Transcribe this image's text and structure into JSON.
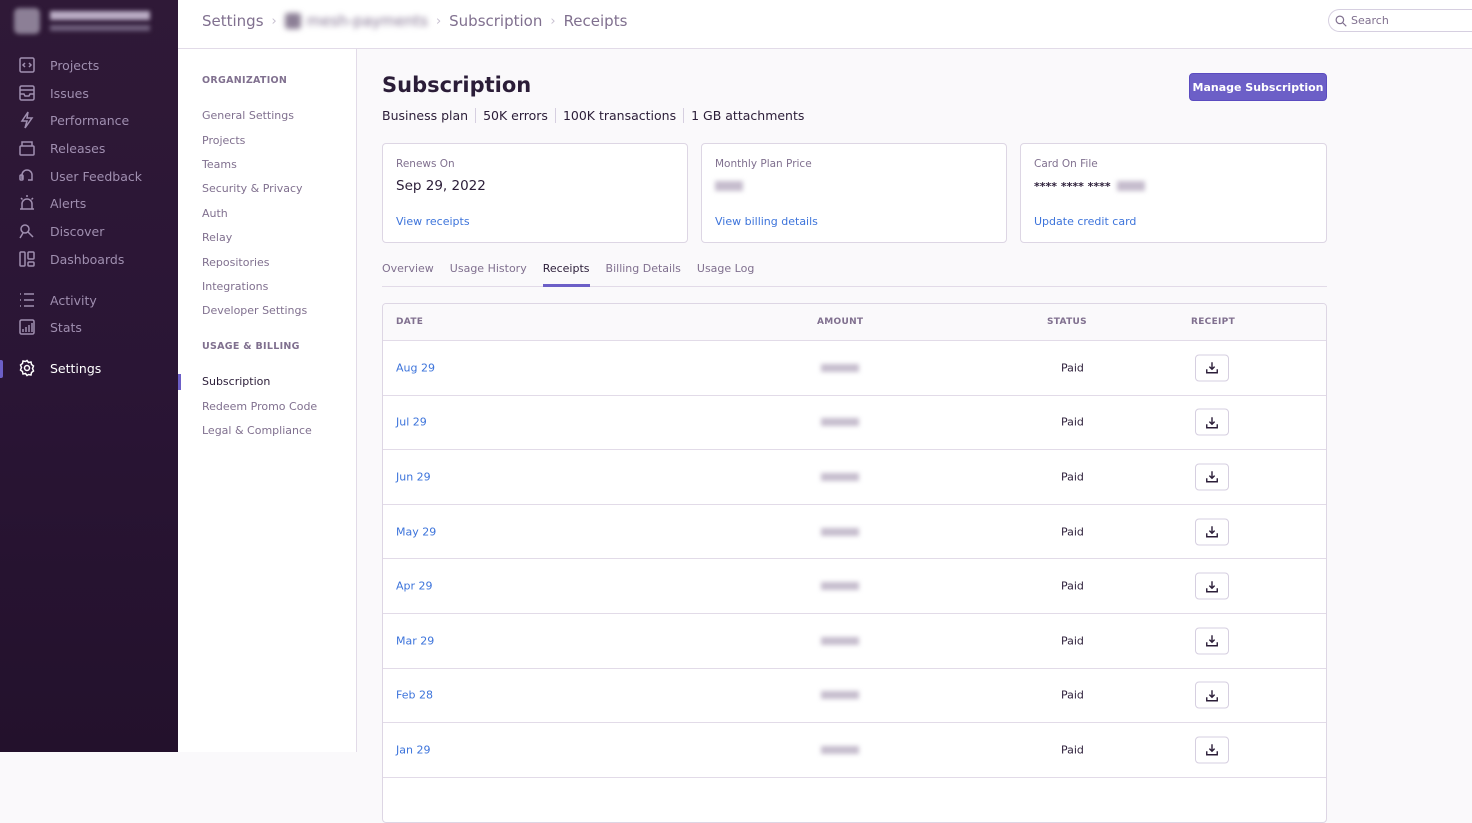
{
  "sidebar": {
    "items": [
      {
        "label": "Projects",
        "icon": "projects-icon"
      },
      {
        "label": "Issues",
        "icon": "issues-icon"
      },
      {
        "label": "Performance",
        "icon": "performance-icon"
      },
      {
        "label": "Releases",
        "icon": "releases-icon"
      },
      {
        "label": "User Feedback",
        "icon": "user-feedback-icon"
      },
      {
        "label": "Alerts",
        "icon": "alerts-icon"
      },
      {
        "label": "Discover",
        "icon": "discover-icon"
      },
      {
        "label": "Dashboards",
        "icon": "dashboards-icon"
      },
      {
        "label": "Activity",
        "icon": "activity-icon"
      },
      {
        "label": "Stats",
        "icon": "stats-icon"
      },
      {
        "label": "Settings",
        "icon": "gear-icon",
        "active": true
      }
    ]
  },
  "breadcrumb": {
    "settings": "Settings",
    "org": "mesh-payments",
    "subscription": "Subscription",
    "receipts": "Receipts"
  },
  "search": {
    "placeholder": "Search"
  },
  "settings_nav": {
    "org_heading": "ORGANIZATION",
    "org_items": [
      "General Settings",
      "Projects",
      "Teams",
      "Security & Privacy",
      "Auth",
      "Relay",
      "Repositories",
      "Integrations",
      "Developer Settings"
    ],
    "billing_heading": "USAGE & BILLING",
    "billing_items": [
      "Subscription",
      "Redeem Promo Code",
      "Legal & Compliance"
    ],
    "active": "Subscription"
  },
  "page": {
    "title": "Subscription",
    "plan": [
      "Business plan",
      "50K errors",
      "100K transactions",
      "1 GB attachments"
    ],
    "manage_button": "Manage Subscription",
    "cards": [
      {
        "label": "Renews On",
        "value": "Sep 29, 2022",
        "link": "View receipts"
      },
      {
        "label": "Monthly Plan Price",
        "link": "View billing details"
      },
      {
        "label": "Card On File",
        "value": "**** **** ****",
        "link": "Update credit card"
      }
    ],
    "tabs": [
      "Overview",
      "Usage History",
      "Receipts",
      "Billing Details",
      "Usage Log"
    ],
    "active_tab": "Receipts"
  },
  "table": {
    "headers": {
      "date": "DATE",
      "amount": "AMOUNT",
      "status": "STATUS",
      "receipt": "RECEIPT"
    },
    "rows": [
      {
        "date": "Aug 29",
        "status": "Paid"
      },
      {
        "date": "Jul 29",
        "status": "Paid"
      },
      {
        "date": "Jun 29",
        "status": "Paid"
      },
      {
        "date": "May 29",
        "status": "Paid"
      },
      {
        "date": "Apr 29",
        "status": "Paid"
      },
      {
        "date": "Mar 29",
        "status": "Paid"
      },
      {
        "date": "Feb 28",
        "status": "Paid"
      },
      {
        "date": "Jan 29",
        "status": "Paid"
      }
    ]
  },
  "colors": {
    "accent": "#6c5fc7",
    "link": "#3d74db",
    "sidebar": "#2f1937"
  }
}
